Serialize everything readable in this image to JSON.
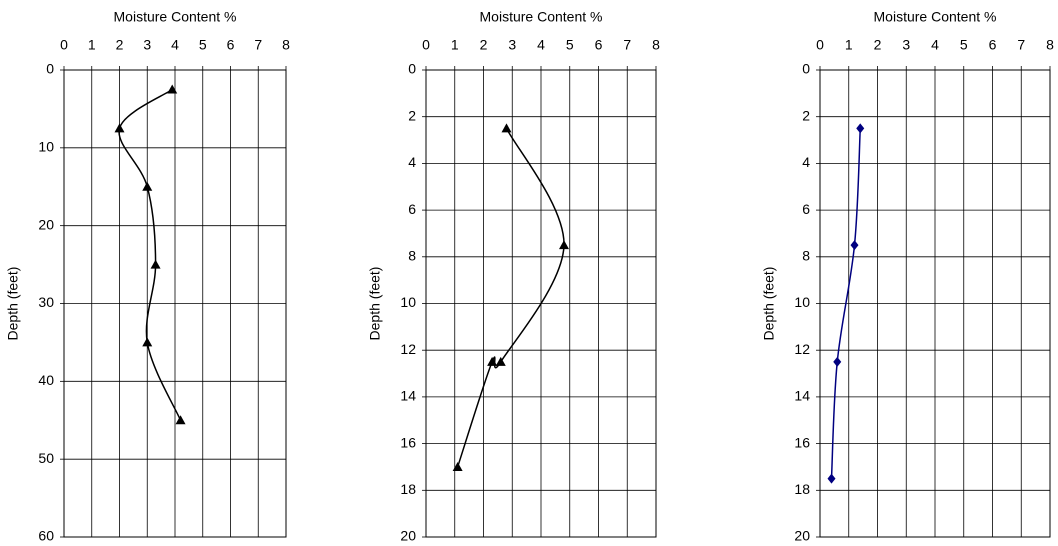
{
  "chart_data": [
    {
      "type": "line",
      "x_label": "Moisture Content %",
      "y_label": "Depth (feet)",
      "xlim": [
        0,
        8
      ],
      "xticks": [
        0,
        1,
        2,
        3,
        4,
        5,
        6,
        7,
        8
      ],
      "ylim": [
        0,
        60
      ],
      "yticks": [
        0,
        10,
        20,
        30,
        40,
        50,
        60
      ],
      "y_inverted": true,
      "grid": true,
      "series": [
        {
          "color": "#000000",
          "marker": "triangle",
          "x": [
            3.9,
            2.0,
            3.0,
            3.3,
            3.0,
            4.2
          ],
          "values": [
            2.5,
            7.5,
            15,
            25,
            35,
            45
          ]
        }
      ]
    },
    {
      "type": "line",
      "x_label": "Moisture Content %",
      "y_label": "Depth (feet)",
      "xlim": [
        0,
        8
      ],
      "xticks": [
        0,
        1,
        2,
        3,
        4,
        5,
        6,
        7,
        8
      ],
      "ylim": [
        0,
        20
      ],
      "yticks": [
        0,
        2,
        4,
        6,
        8,
        10,
        12,
        14,
        16,
        18,
        20
      ],
      "y_inverted": true,
      "grid": true,
      "series": [
        {
          "color": "#000000",
          "marker": "triangle",
          "x": [
            2.8,
            4.8,
            2.6,
            2.3,
            1.1
          ],
          "values": [
            2.5,
            7.5,
            12.5,
            12.5,
            17
          ]
        }
      ]
    },
    {
      "type": "line",
      "x_label": "Moisture Content %",
      "y_label": "Depth (feet)",
      "xlim": [
        0,
        8
      ],
      "xticks": [
        0,
        1,
        2,
        3,
        4,
        5,
        6,
        7,
        8
      ],
      "ylim": [
        0,
        20
      ],
      "yticks": [
        0,
        2,
        4,
        6,
        8,
        10,
        12,
        14,
        16,
        18,
        20
      ],
      "y_inverted": true,
      "grid": true,
      "series": [
        {
          "color": "#000080",
          "marker": "diamond",
          "x": [
            1.4,
            1.2,
            0.6,
            0.4
          ],
          "values": [
            2.5,
            7.5,
            12.5,
            17.5
          ]
        }
      ]
    }
  ]
}
